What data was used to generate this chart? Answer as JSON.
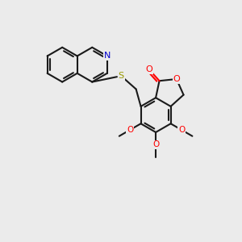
{
  "background_color": "#ebebeb",
  "bond_color": "#1a1a1a",
  "bond_width": 1.5,
  "atom_colors": {
    "O": "#ff0000",
    "N": "#0000cc",
    "S": "#999900",
    "C": "#1a1a1a"
  },
  "figsize": [
    3.0,
    3.0
  ],
  "dpi": 100
}
